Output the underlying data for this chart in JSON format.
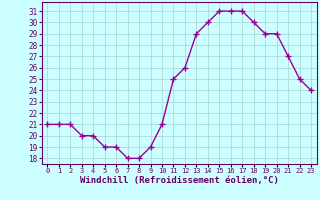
{
  "x": [
    0,
    1,
    2,
    3,
    4,
    5,
    6,
    7,
    8,
    9,
    10,
    11,
    12,
    13,
    14,
    15,
    16,
    17,
    18,
    19,
    20,
    21,
    22,
    23
  ],
  "y": [
    21,
    21,
    21,
    20,
    20,
    19,
    19,
    18,
    18,
    19,
    21,
    25,
    26,
    29,
    30,
    31,
    31,
    31,
    30,
    29,
    29,
    27,
    25,
    24
  ],
  "line_color": "#990099",
  "marker": "+",
  "marker_size": 4,
  "marker_lw": 1.0,
  "line_width": 1.0,
  "bg_color": "#ccffff",
  "grid_color": "#b0d8d8",
  "xlabel": "Windchill (Refroidissement éolien,°C)",
  "xlabel_fontsize": 6.5,
  "yticks": [
    18,
    19,
    20,
    21,
    22,
    23,
    24,
    25,
    26,
    27,
    28,
    29,
    30,
    31
  ],
  "xtick_labels": [
    "0",
    "1",
    "2",
    "3",
    "4",
    "5",
    "6",
    "7",
    "8",
    "9",
    "10",
    "11",
    "12",
    "13",
    "14",
    "15",
    "16",
    "17",
    "18",
    "19",
    "20",
    "21",
    "22",
    "23"
  ],
  "ylim": [
    17.5,
    31.8
  ],
  "xlim": [
    -0.5,
    23.5
  ],
  "ytick_fontsize": 5.5,
  "xtick_fontsize": 5.0,
  "tick_color": "#660066",
  "spine_color": "#660066",
  "xlabel_bold": true
}
